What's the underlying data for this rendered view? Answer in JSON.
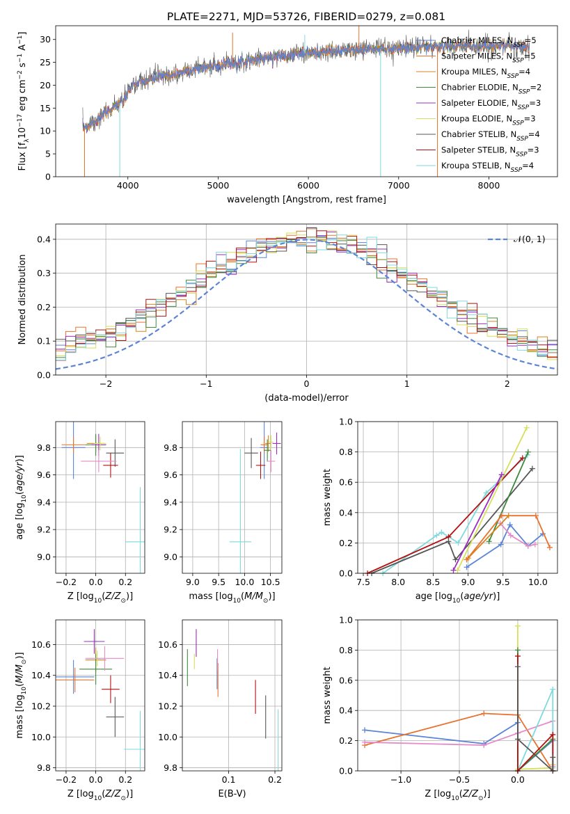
{
  "figure": {
    "title": "PLATE=2271, MJD=53726, FIBERID=0279, z=0.081"
  },
  "colors": {
    "chabrier_miles": "#5b84d6",
    "salpeter_miles": "#e8722c",
    "kroupa_miles": "#d9831f",
    "chabrier_elodie": "#3c8a3c",
    "salpeter_elodie": "#9b2cc1",
    "kroupa_elodie": "#d6e05a",
    "chabrier_stelib": "#555555",
    "salpeter_stelib": "#b51010",
    "kroupa_stelib": "#7fd9dd",
    "pink": "#e58ac9",
    "normal": "#5b84d6",
    "grid": "#b0b0b0"
  },
  "chart_data": [
    {
      "id": "spectrum",
      "type": "line",
      "xlabel": "wavelength [Angstrom, rest frame]",
      "ylabel": "Flux [f_λ10^-17 erg cm^-2 s^-1 A^-1]",
      "xlim": [
        3200,
        8760
      ],
      "ylim": [
        0,
        33
      ],
      "xticks": [
        4000,
        5000,
        6000,
        7000,
        8000
      ],
      "yticks": [
        0,
        5,
        10,
        15,
        20,
        25,
        30
      ],
      "grid": false,
      "legend_position": "right",
      "legend": [
        {
          "name": "Chabrier MILES, N_SSP=5",
          "color_key": "chabrier_miles"
        },
        {
          "name": "Salpeter MILES, N_SSP=5",
          "color_key": "salpeter_miles"
        },
        {
          "name": "Kroupa MILES, N_SSP=4",
          "color_key": "kroupa_miles"
        },
        {
          "name": "Chabrier ELODIE, N_SSP=2",
          "color_key": "chabrier_elodie"
        },
        {
          "name": "Salpeter ELODIE, N_SSP=3",
          "color_key": "salpeter_elodie"
        },
        {
          "name": "Kroupa ELODIE, N_SSP=3",
          "color_key": "kroupa_elodie"
        },
        {
          "name": "Chabrier STELIB, N_SSP=4",
          "color_key": "chabrier_stelib"
        },
        {
          "name": "Salpeter STELIB, N_SSP=3",
          "color_key": "salpeter_stelib"
        },
        {
          "name": "Kroupa STELIB, N_SSP=4",
          "color_key": "kroupa_stelib"
        }
      ],
      "continuum": {
        "x": [
          3500,
          3700,
          3850,
          3950,
          4050,
          4200,
          4400,
          4600,
          4800,
          5000,
          5200,
          5400,
          5600,
          5800,
          6000,
          6200,
          6400,
          6600,
          6800,
          7000,
          7200,
          7400,
          7600,
          7800,
          8000,
          8200,
          8450
        ],
        "y": [
          10.5,
          13.0,
          15.5,
          16.5,
          20.0,
          21.0,
          22.0,
          22.8,
          23.8,
          24.3,
          25.0,
          25.6,
          26.2,
          26.7,
          27.0,
          27.3,
          27.6,
          27.8,
          27.9,
          28.1,
          28.2,
          28.4,
          28.5,
          28.6,
          28.7,
          28.6,
          28.4
        ]
      }
    },
    {
      "id": "residuals",
      "type": "histogram",
      "xlabel": "(data-model)/error",
      "ylabel": "Normed distribution",
      "xlim": [
        -2.5,
        2.5
      ],
      "ylim": [
        0,
        0.445
      ],
      "xticks": [
        -2,
        -1,
        0,
        1,
        2
      ],
      "yticks": [
        0.0,
        0.1,
        0.2,
        0.3,
        0.4
      ],
      "grid": true,
      "legend_position": "top-right",
      "normal_label": "𝒩(0, 1)",
      "bins": {
        "start": -2.5,
        "step": 0.1,
        "count": 50
      }
    },
    {
      "id": "age_vs_Z",
      "type": "errorbar",
      "xlabel": "Z [log10(Z/Z☉)]",
      "ylabel": "age  [log10(age/yr)]",
      "xlim": [
        -0.27,
        0.33
      ],
      "ylim": [
        8.88,
        9.99
      ],
      "xticks": [
        -0.2,
        0.0,
        0.2
      ],
      "yticks": [
        9.0,
        9.2,
        9.4,
        9.6,
        9.8
      ],
      "grid": true,
      "points": [
        {
          "key": "chabrier_miles",
          "x": -0.15,
          "y": 9.8,
          "xerr": 0.08,
          "yerr": 0.23
        },
        {
          "key": "salpeter_miles",
          "x": -0.15,
          "y": 9.82,
          "xerr": 0.08,
          "yerr": 0.06
        },
        {
          "key": "kroupa_miles",
          "x": 0.0,
          "y": 9.83,
          "xerr": 0.06,
          "yerr": 0.06
        },
        {
          "key": "chabrier_elodie",
          "x": 0.0,
          "y": 9.82,
          "xerr": 0.07,
          "yerr": 0.08
        },
        {
          "key": "salpeter_elodie",
          "x": 0.02,
          "y": 9.82,
          "xerr": 0.05,
          "yerr": 0.08
        },
        {
          "key": "kroupa_elodie",
          "x": 0.03,
          "y": 9.83,
          "xerr": 0.04,
          "yerr": 0.05
        },
        {
          "key": "chabrier_stelib",
          "x": 0.13,
          "y": 9.76,
          "xerr": 0.06,
          "yerr": 0.1
        },
        {
          "key": "salpeter_stelib",
          "x": 0.1,
          "y": 9.67,
          "xerr": 0.05,
          "yerr": 0.09
        },
        {
          "key": "kroupa_stelib",
          "x": 0.3,
          "y": 9.11,
          "xerr": 0.1,
          "yerr": 0.4
        },
        {
          "key": "pink",
          "x": 0.02,
          "y": 9.7,
          "xerr": 0.12,
          "yerr": 0.08
        }
      ]
    },
    {
      "id": "age_vs_mass",
      "type": "errorbar",
      "xlabel": "mass [log10(M/M☉)]",
      "ylabel": "",
      "xlim": [
        8.8,
        10.72
      ],
      "ylim": [
        8.88,
        9.99
      ],
      "xticks": [
        9.0,
        9.5,
        10.0,
        10.5
      ],
      "yticks": [
        9.0,
        9.2,
        9.4,
        9.6,
        9.8
      ],
      "grid": true,
      "points": [
        {
          "key": "chabrier_miles",
          "x": 10.38,
          "y": 9.8,
          "xerr": 0.08,
          "yerr": 0.23
        },
        {
          "key": "salpeter_miles",
          "x": 10.38,
          "y": 9.82,
          "xerr": 0.07,
          "yerr": 0.06
        },
        {
          "key": "kroupa_miles",
          "x": 10.46,
          "y": 9.83,
          "xerr": 0.06,
          "yerr": 0.06
        },
        {
          "key": "chabrier_elodie",
          "x": 10.44,
          "y": 9.78,
          "xerr": 0.07,
          "yerr": 0.08
        },
        {
          "key": "salpeter_elodie",
          "x": 10.62,
          "y": 9.83,
          "xerr": 0.08,
          "yerr": 0.08
        },
        {
          "key": "kroupa_elodie",
          "x": 10.51,
          "y": 9.84,
          "xerr": 0.05,
          "yerr": 0.05
        },
        {
          "key": "chabrier_stelib",
          "x": 10.13,
          "y": 9.76,
          "xerr": 0.13,
          "yerr": 0.11
        },
        {
          "key": "salpeter_stelib",
          "x": 10.31,
          "y": 9.67,
          "xerr": 0.09,
          "yerr": 0.1
        },
        {
          "key": "kroupa_stelib",
          "x": 9.92,
          "y": 9.11,
          "xerr": 0.21,
          "yerr": 0.68
        },
        {
          "key": "pink",
          "x": 10.51,
          "y": 9.7,
          "xerr": 0.08,
          "yerr": 0.08
        }
      ]
    },
    {
      "id": "weight_vs_age",
      "type": "line",
      "xlabel": "age  [log10(age/yr)]",
      "ylabel": "mass weight",
      "xlim": [
        7.42,
        10.28
      ],
      "ylim": [
        0.0,
        1.0
      ],
      "xticks": [
        7.5,
        8.0,
        8.5,
        9.0,
        9.5,
        10.0
      ],
      "yticks": [
        0.0,
        0.2,
        0.4,
        0.6,
        0.8,
        1.0
      ],
      "grid": true,
      "series": [
        {
          "key": "kroupa_stelib",
          "x": [
            7.78,
            8.55,
            8.62,
            8.86,
            9.26,
            9.85
          ],
          "y": [
            0.0,
            0.25,
            0.27,
            0.2,
            0.53,
            0.78
          ]
        },
        {
          "key": "salpeter_stelib",
          "x": [
            7.56,
            8.72,
            9.78
          ],
          "y": [
            0.0,
            0.24,
            0.76
          ]
        },
        {
          "key": "chabrier_stelib",
          "x": [
            7.62,
            8.72,
            8.82,
            9.92
          ],
          "y": [
            0.0,
            0.21,
            0.09,
            0.69
          ]
        },
        {
          "key": "chabrier_elodie",
          "x": [
            9.3,
            9.86
          ],
          "y": [
            0.21,
            0.8
          ]
        },
        {
          "key": "kroupa_elodie",
          "x": [
            8.85,
            9.84
          ],
          "y": [
            0.02,
            0.96
          ]
        },
        {
          "key": "salpeter_elodie",
          "x": [
            8.79,
            9.48
          ],
          "y": [
            0.02,
            0.65
          ]
        },
        {
          "key": "chabrier_miles",
          "x": [
            8.98,
            9.47,
            9.6,
            9.86,
            10.07
          ],
          "y": [
            0.04,
            0.19,
            0.32,
            0.18,
            0.26
          ]
        },
        {
          "key": "salpeter_miles",
          "x": [
            8.98,
            9.48,
            9.97,
            10.17
          ],
          "y": [
            0.09,
            0.38,
            0.38,
            0.17
          ]
        },
        {
          "key": "pink",
          "x": [
            9.46,
            9.61,
            9.86,
            9.96
          ],
          "y": [
            0.33,
            0.25,
            0.18,
            0.19
          ]
        },
        {
          "key": "kroupa_miles",
          "x": [
            9.0,
            9.58
          ],
          "y": [
            0.1,
            0.38
          ]
        }
      ]
    },
    {
      "id": "mass_vs_Z",
      "type": "errorbar",
      "xlabel": "Z [log10(Z/Z☉)]",
      "ylabel": "mass [log10(M/M☉)]",
      "xlim": [
        -0.27,
        0.33
      ],
      "ylim": [
        9.78,
        10.76
      ],
      "xticks": [
        -0.2,
        0.0,
        0.2
      ],
      "yticks": [
        9.8,
        10.0,
        10.2,
        10.4,
        10.6
      ],
      "grid": true,
      "points": [
        {
          "key": "chabrier_miles",
          "x": -0.15,
          "y": 10.39,
          "xerr": 0.14,
          "yerr": 0.11
        },
        {
          "key": "salpeter_miles",
          "x": -0.14,
          "y": 10.37,
          "xerr": 0.13,
          "yerr": 0.08
        },
        {
          "key": "kroupa_miles",
          "x": 0.0,
          "y": 10.5,
          "xerr": 0.07,
          "yerr": 0.08
        },
        {
          "key": "chabrier_elodie",
          "x": 0.0,
          "y": 10.44,
          "xerr": 0.11,
          "yerr": 0.1
        },
        {
          "key": "salpeter_elodie",
          "x": -0.01,
          "y": 10.62,
          "xerr": 0.07,
          "yerr": 0.08
        },
        {
          "key": "kroupa_elodie",
          "x": 0.01,
          "y": 10.51,
          "xerr": 0.05,
          "yerr": 0.05
        },
        {
          "key": "chabrier_stelib",
          "x": 0.13,
          "y": 10.13,
          "xerr": 0.06,
          "yerr": 0.13
        },
        {
          "key": "salpeter_stelib",
          "x": 0.1,
          "y": 10.31,
          "xerr": 0.06,
          "yerr": 0.09
        },
        {
          "key": "kroupa_stelib",
          "x": 0.3,
          "y": 9.92,
          "xerr": 0.11,
          "yerr": 0.25
        },
        {
          "key": "pink",
          "x": 0.06,
          "y": 10.51,
          "xerr": 0.13,
          "yerr": 0.08
        }
      ]
    },
    {
      "id": "mass_vs_ebv",
      "type": "errorbar",
      "xlabel": "E(B-V)",
      "ylabel": "",
      "xlim": [
        0.0,
        0.215
      ],
      "ylim": [
        9.78,
        10.76
      ],
      "xticks": [
        0.1,
        0.2
      ],
      "yticks": [
        9.8,
        10.0,
        10.2,
        10.4,
        10.6
      ],
      "grid": true,
      "points": [
        {
          "key": "chabrier_miles",
          "x": 0.075,
          "y": 10.41,
          "xerr": 0.0,
          "yerr": 0.1
        },
        {
          "key": "salpeter_miles",
          "x": 0.077,
          "y": 10.37,
          "xerr": 0.0,
          "yerr": 0.11
        },
        {
          "key": "chabrier_elodie",
          "x": 0.011,
          "y": 10.45,
          "xerr": 0.0,
          "yerr": 0.12
        },
        {
          "key": "salpeter_elodie",
          "x": 0.03,
          "y": 10.61,
          "xerr": 0.0,
          "yerr": 0.09
        },
        {
          "key": "kroupa_elodie",
          "x": 0.026,
          "y": 10.49,
          "xerr": 0.0,
          "yerr": 0.05
        },
        {
          "key": "chabrier_stelib",
          "x": 0.18,
          "y": 10.13,
          "xerr": 0.0,
          "yerr": 0.14
        },
        {
          "key": "salpeter_stelib",
          "x": 0.158,
          "y": 10.26,
          "xerr": 0.0,
          "yerr": 0.11
        },
        {
          "key": "kroupa_stelib",
          "x": 0.207,
          "y": 9.93,
          "xerr": 0.0,
          "yerr": 0.25
        },
        {
          "key": "pink",
          "x": 0.076,
          "y": 10.5,
          "xerr": 0.0,
          "yerr": 0.07
        }
      ]
    },
    {
      "id": "weight_vs_Z",
      "type": "line",
      "xlabel": "Z [log10(Z/Z☉)]",
      "ylabel": "mass weight",
      "xlim": [
        -1.37,
        0.34
      ],
      "ylim": [
        0.0,
        1.0
      ],
      "xticks": [
        -1.0,
        -0.5,
        0.0
      ],
      "yticks": [
        0.0,
        0.2,
        0.4,
        0.6,
        0.8,
        1.0
      ],
      "grid": true,
      "series": [
        {
          "key": "chabrier_miles",
          "x": [
            -1.31,
            -0.29,
            0.0,
            0.0,
            0.3,
            0.3
          ],
          "y": [
            0.27,
            0.18,
            0.32,
            0.0,
            0.2,
            0.04
          ]
        },
        {
          "key": "salpeter_miles",
          "x": [
            -1.31,
            -0.29,
            0.0,
            0.3,
            0.3
          ],
          "y": [
            0.17,
            0.38,
            0.37,
            0.0,
            0.09
          ]
        },
        {
          "key": "pink",
          "x": [
            -1.31,
            -0.29,
            0.0,
            0.3,
            0.3
          ],
          "y": [
            0.19,
            0.17,
            0.25,
            0.33,
            0.03
          ]
        },
        {
          "key": "kroupa_elodie",
          "x": [
            0.0,
            0.0,
            0.3,
            0.3
          ],
          "y": [
            0.96,
            0.01,
            0.02,
            0.04
          ]
        },
        {
          "key": "chabrier_elodie",
          "x": [
            0.0,
            0.0,
            0.3
          ],
          "y": [
            0.8,
            0.0,
            0.21
          ]
        },
        {
          "key": "kroupa_stelib",
          "x": [
            0.0,
            0.0,
            0.3,
            0.3
          ],
          "y": [
            0.0,
            0.0,
            0.54,
            0.02
          ]
        },
        {
          "key": "salpeter_stelib",
          "x": [
            0.0,
            0.0,
            0.3,
            0.3
          ],
          "y": [
            0.76,
            0.0,
            0.24,
            0.0
          ]
        },
        {
          "key": "chabrier_stelib",
          "x": [
            0.0,
            0.0,
            0.3,
            0.3
          ],
          "y": [
            0.69,
            0.21,
            0.0,
            0.09
          ]
        }
      ]
    }
  ]
}
